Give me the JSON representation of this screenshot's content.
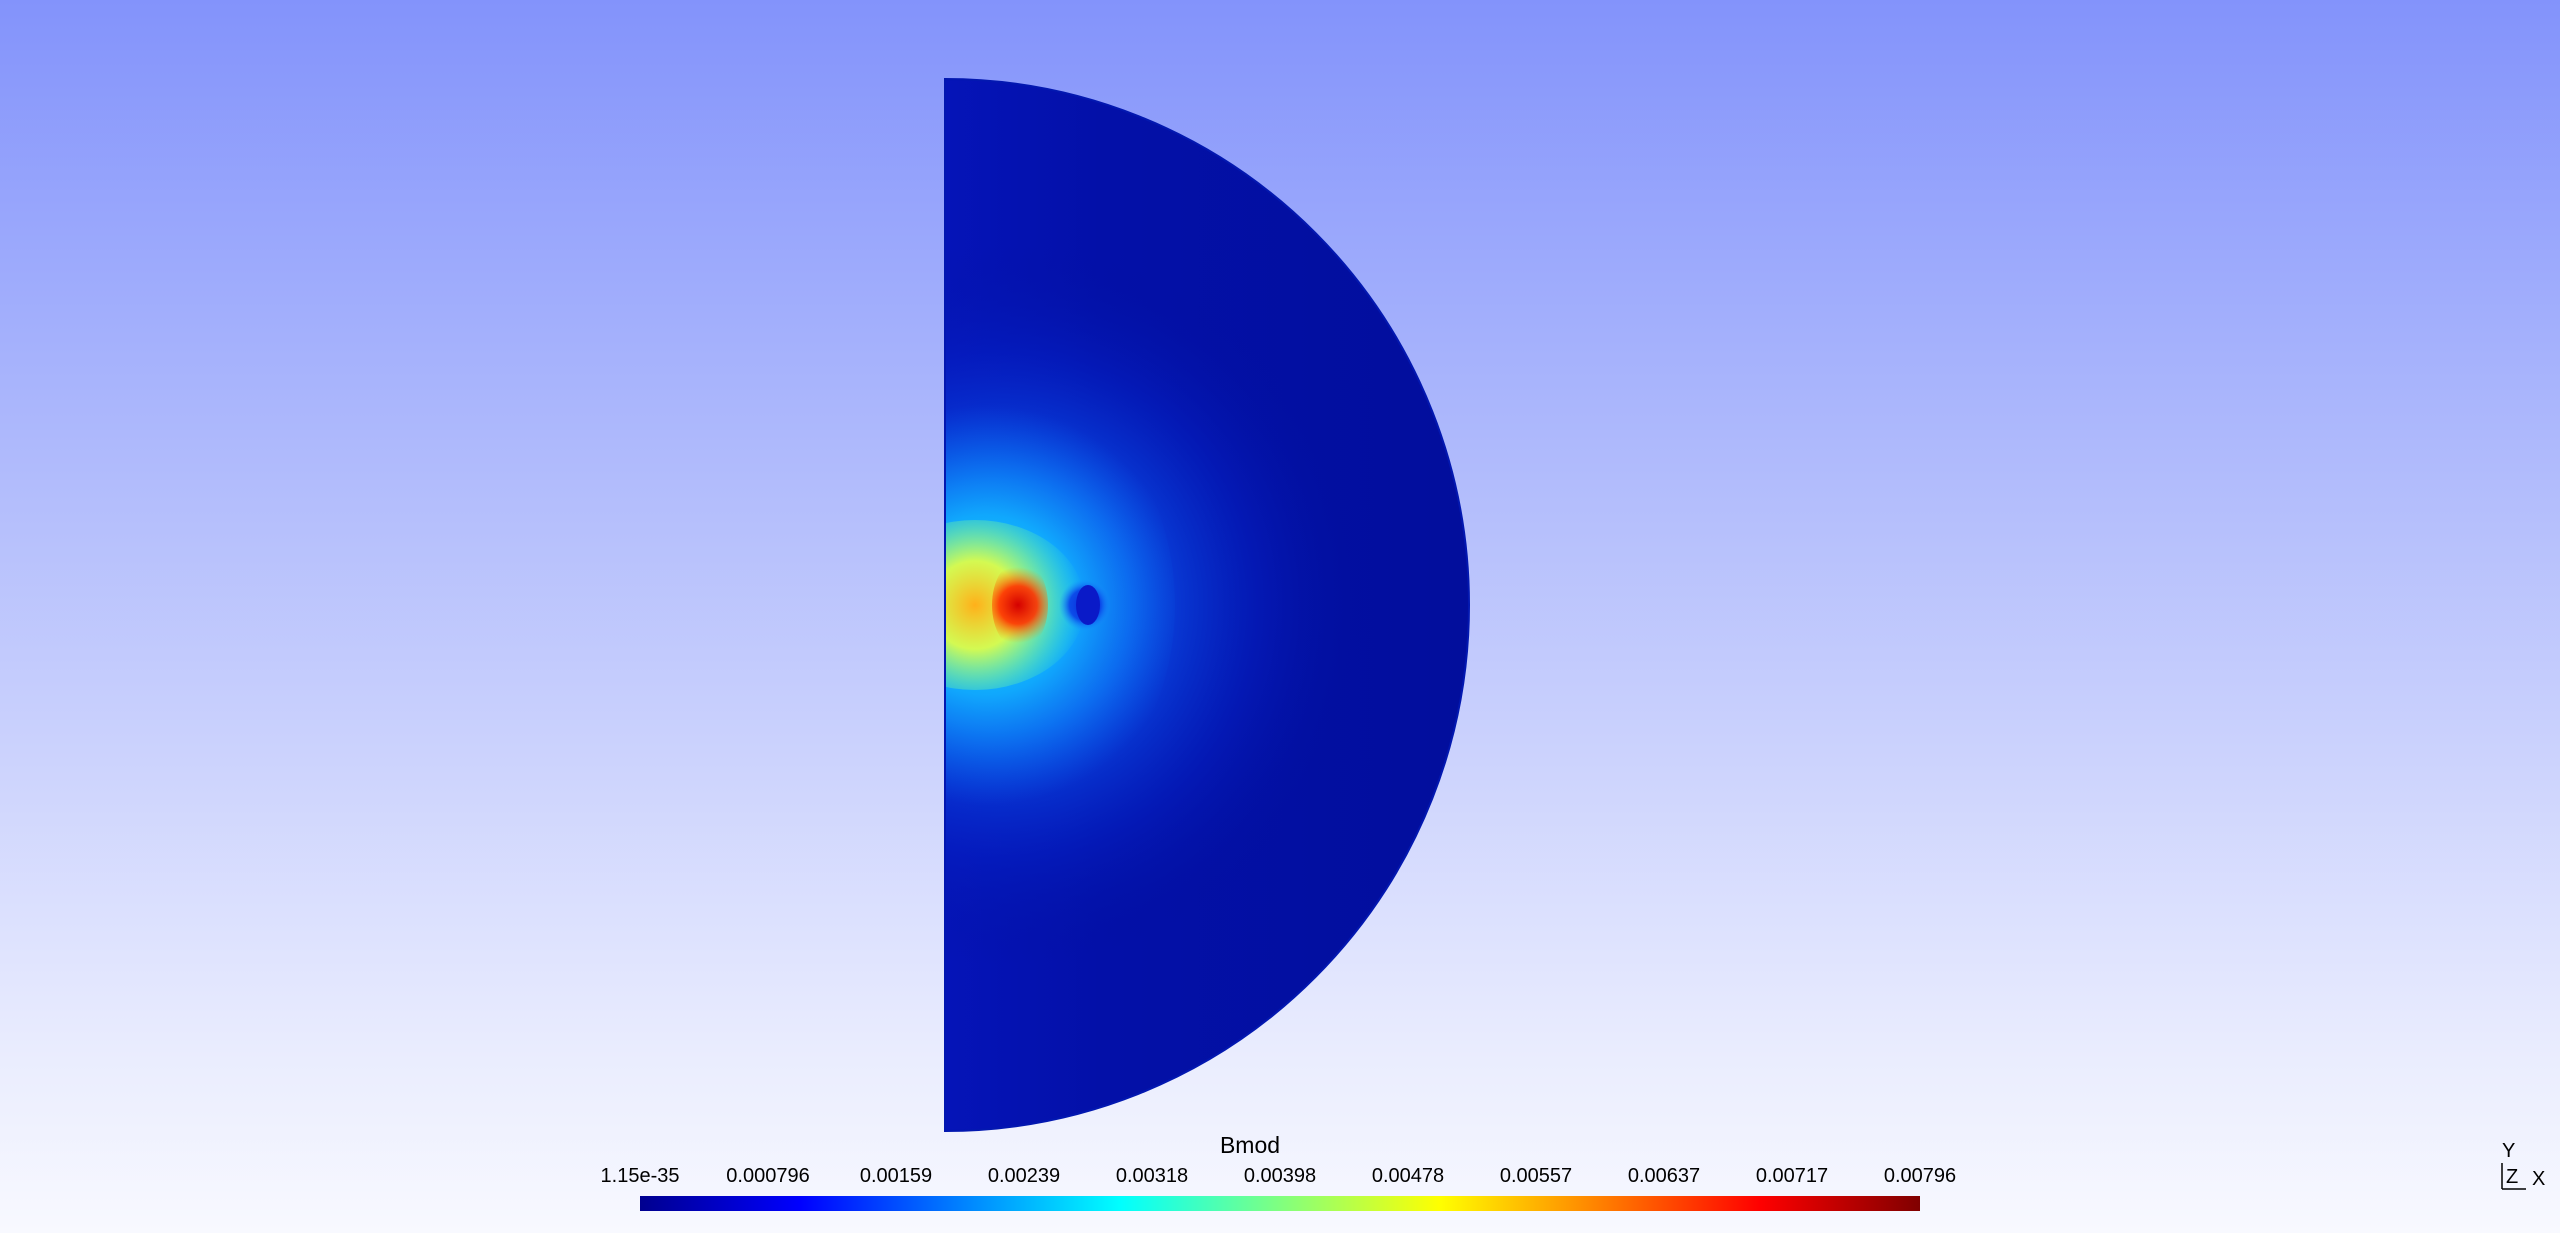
{
  "field": {
    "name": "Bmod",
    "shape": "half-disk",
    "colormap": [
      "#00008f",
      "#0000ff",
      "#0080ff",
      "#00ffff",
      "#80ff80",
      "#ffff00",
      "#ff8000",
      "#ff0000",
      "#800000"
    ]
  },
  "colorbar": {
    "title": "Bmod",
    "ticks": [
      "1.15e-35",
      "0.000796",
      "0.00159",
      "0.00239",
      "0.00318",
      "0.00398",
      "0.00478",
      "0.00557",
      "0.00637",
      "0.00717",
      "0.00796"
    ]
  },
  "axes": {
    "x_label": "X",
    "y_label": "Y",
    "z_label": "Z"
  }
}
